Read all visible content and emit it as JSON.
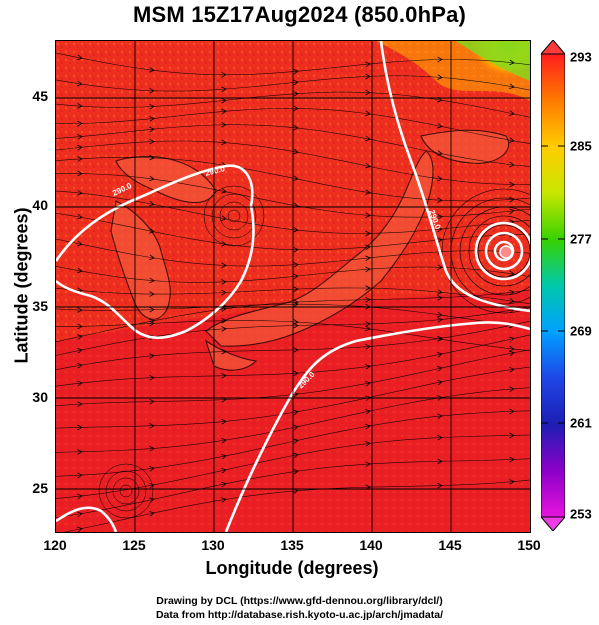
{
  "title": "MSM 15Z17Aug2024 (850.0hPa)",
  "map": {
    "xlabel": "Longitude (degrees)",
    "ylabel": "Latitude  (degrees)",
    "lon_range": [
      120,
      150
    ],
    "lat_range": [
      22.4,
      48
    ],
    "lon_ticks": [
      "120",
      "125",
      "130",
      "135",
      "140",
      "145",
      "150"
    ],
    "lat_ticks": [
      "25",
      "30",
      "35",
      "40",
      "45"
    ],
    "contour_labels": [
      "290.0",
      "290.0",
      "290.0",
      "290.0"
    ],
    "field_colors": {
      "warm": "#f0321e",
      "hot": "#e8142a",
      "cool": "#ffb400",
      "cold": "#7ddc1e",
      "contour": "#ffffff",
      "coast": "#000000"
    }
  },
  "colorbar": {
    "min": "253",
    "max": "293",
    "ticks": [
      "293",
      "285",
      "277",
      "269",
      "261",
      "253"
    ],
    "colors": [
      "#ff1e1e",
      "#ff7a00",
      "#ffcc00",
      "#c8e600",
      "#38d200",
      "#00c8aa",
      "#00a0ff",
      "#1e46e6",
      "#1e1eb4",
      "#8c00c8",
      "#e614dc"
    ]
  },
  "credits": {
    "line1": "Drawing by DCL (https://www.gfd-dennou.org/library/dcl/)",
    "line2": "Data from http://database.rish.kyoto-u.ac.jp/arch/jmadata/"
  }
}
